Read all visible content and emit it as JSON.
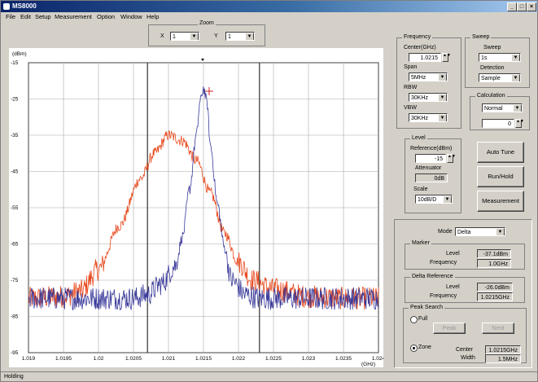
{
  "window": {
    "title": "MS8000",
    "minimize": "_",
    "maximize": "□",
    "close": "×"
  },
  "menu": [
    "File",
    "Edit",
    "Setup",
    "Measurement",
    "Option",
    "Window",
    "Help"
  ],
  "zoom": {
    "legend": "Zoom",
    "x_label": "X",
    "x_value": "1",
    "y_label": "Y",
    "y_value": "1"
  },
  "plot": {
    "y_unit": "(dBm)",
    "x_unit": "(GHz)",
    "y_ticks": [
      "-15",
      "-25",
      "-35",
      "-45",
      "-55",
      "-65",
      "-75",
      "-85",
      "-95"
    ],
    "x_ticks": [
      "1.019",
      "1.0195",
      "1.02",
      "1.0205",
      "1.021",
      "1.0215",
      "1.022",
      "1.0225",
      "1.023",
      "1.0235",
      "1.024"
    ]
  },
  "chart_data": {
    "type": "line",
    "xlabel": "(GHz)",
    "ylabel": "(dBm)",
    "xlim": [
      1.019,
      1.024
    ],
    "ylim": [
      -95,
      -15
    ],
    "grid": true,
    "series": [
      {
        "color": "#e8481c",
        "x": [
          1.019,
          1.0195,
          1.01975,
          1.02,
          1.0203,
          1.0206,
          1.0208,
          1.021,
          1.0212,
          1.0214,
          1.0216,
          1.0218,
          1.022,
          1.0222,
          1.0225,
          1.023,
          1.0235,
          1.024
        ],
        "y": [
          -80,
          -79.5,
          -78,
          -72,
          -60,
          -47,
          -40,
          -35,
          -36.5,
          -42,
          -51,
          -62,
          -70,
          -75,
          -77.5,
          -79.5,
          -80,
          -80
        ]
      },
      {
        "color": "#3a3a9a",
        "x": [
          1.019,
          1.0205,
          1.0207,
          1.0209,
          1.0211,
          1.0212,
          1.0213,
          1.0214,
          1.02145,
          1.0215,
          1.02155,
          1.0216,
          1.0217,
          1.0218,
          1.0219,
          1.0221,
          1.0223,
          1.024
        ],
        "y": [
          -80,
          -80,
          -79,
          -76,
          -71,
          -63,
          -50,
          -35,
          -26,
          -22,
          -26,
          -38,
          -54,
          -66,
          -75,
          -79,
          -80,
          -80
        ]
      }
    ]
  },
  "frequency": {
    "legend": "Frequency",
    "center_label": "Center(GHz)",
    "center_value": "1.0215",
    "span_label": "Span",
    "span_value": "5MHz",
    "rbw_label": "RBW",
    "rbw_value": "30KHz",
    "vbw_label": "VBW",
    "vbw_value": "30KHz"
  },
  "sweep": {
    "legend": "Sweep",
    "sweep_label": "Sweep",
    "sweep_value": "1s",
    "detection_label": "Detection",
    "detection_value": "Sample"
  },
  "calculation": {
    "legend": "Calculation",
    "mode_value": "Normal",
    "count_value": "0"
  },
  "level": {
    "legend": "Level",
    "reference_label": "Reference(dBm)",
    "reference_value": "-15",
    "attenuator_label": "Attenuator",
    "attenuator_value": "0dB",
    "scale_label": "Scale",
    "scale_value": "10dB/D"
  },
  "buttons": {
    "auto_tune": "Auto Tune",
    "run_hold": "Run/Hold",
    "measurement": "Measurement"
  },
  "mode": {
    "label": "Mode",
    "value": "Delta"
  },
  "marker": {
    "legend": "Marker",
    "level_label": "Level",
    "level_value": "-37.1dBm",
    "frequency_label": "Frequency",
    "frequency_value": "1.0GHz"
  },
  "delta_reference": {
    "legend": "Delta Reference",
    "level_label": "Level",
    "level_value": "-26.0dBm",
    "frequency_label": "Frequency",
    "frequency_value": "1.0215GHz"
  },
  "peak_search": {
    "legend": "Peak Search",
    "full_label": "Full",
    "peak_button": "Peak",
    "next_button": "Next",
    "zone_label": "Zone",
    "center_label": "Center",
    "center_value": "1.0215GHz",
    "width_label": "Width",
    "width_value": "1.5MHz"
  },
  "status": "Holding"
}
